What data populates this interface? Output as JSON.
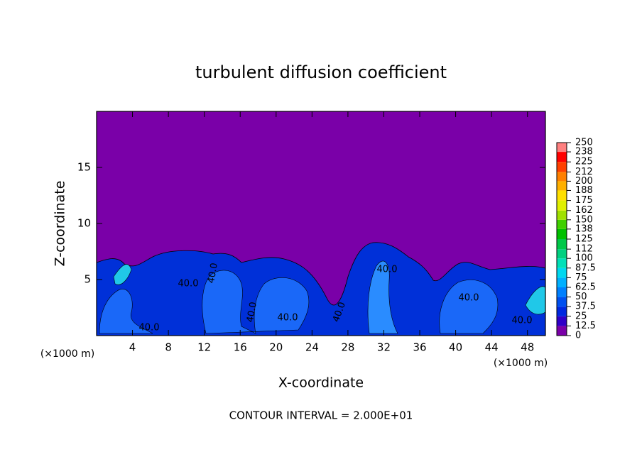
{
  "chart_data": {
    "type": "contour",
    "title": "turbulent diffusion coefficient",
    "xlabel": "X-coordinate",
    "ylabel": "Z-coordinate",
    "x_unit": "(×1000 m)",
    "footer": "CONTOUR INTERVAL = 2.000E+01",
    "xlim": [
      0,
      50
    ],
    "xticks": [
      4,
      8,
      12,
      16,
      20,
      24,
      28,
      32,
      36,
      40,
      44,
      48
    ],
    "ylim": [
      0,
      20
    ],
    "yticks": [
      5,
      10,
      15
    ],
    "levels": [
      0,
      12.5,
      25,
      37.5,
      50,
      62.5,
      75,
      87.5,
      100,
      112,
      125,
      138,
      150,
      162,
      175,
      188,
      200,
      212,
      225,
      238,
      250
    ],
    "colors": [
      "#7a00a8",
      "#3000c8",
      "#0028e0",
      "#0050f0",
      "#0080ff",
      "#00b0ff",
      "#00d8f0",
      "#00e0b8",
      "#00d080",
      "#00c848",
      "#00c000",
      "#40d000",
      "#a0e000",
      "#e0f000",
      "#ffe000",
      "#ffb000",
      "#ff8000",
      "#ff4000",
      "#ff0000",
      "#ff8080"
    ],
    "contour_labels": [
      "40.0",
      "40.0",
      "40.0",
      "40.0",
      "40.0",
      "40.0",
      "40.0",
      "40.0",
      "40.0"
    ]
  }
}
